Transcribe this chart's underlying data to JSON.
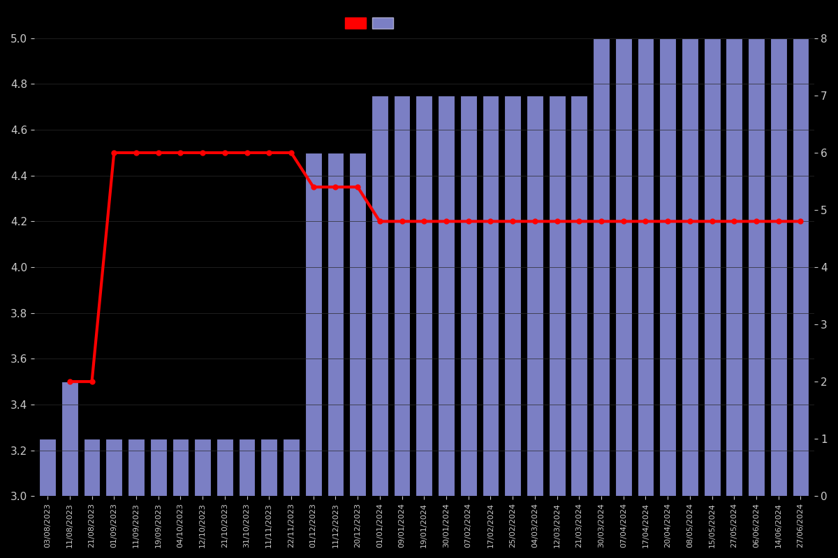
{
  "dates": [
    "03/08/2023",
    "11/08/2023",
    "21/08/2023",
    "01/09/2023",
    "11/09/2023",
    "19/09/2023",
    "04/10/2023",
    "12/10/2023",
    "21/10/2023",
    "31/10/2023",
    "11/11/2023",
    "22/11/2023",
    "01/12/2023",
    "11/12/2023",
    "20/12/2023",
    "01/01/2024",
    "09/01/2024",
    "19/01/2024",
    "30/01/2024",
    "07/02/2024",
    "17/02/2024",
    "25/02/2024",
    "04/03/2024",
    "12/03/2024",
    "21/03/2024",
    "30/03/2024",
    "07/04/2024",
    "17/04/2024",
    "20/04/2024",
    "08/05/2024",
    "15/05/2024",
    "27/05/2024",
    "06/06/2024",
    "14/06/2024",
    "27/06/2024"
  ],
  "bar_values": [
    1,
    2,
    1,
    1,
    1,
    1,
    1,
    1,
    1,
    1,
    1,
    1,
    6,
    6,
    6,
    7,
    7,
    7,
    7,
    7,
    7,
    7,
    7,
    7,
    7,
    8,
    8,
    8,
    8,
    8,
    8,
    8,
    8,
    8,
    8
  ],
  "line_values": [
    null,
    3.5,
    3.5,
    4.5,
    4.5,
    4.5,
    4.5,
    4.5,
    4.5,
    4.5,
    4.5,
    4.5,
    4.35,
    4.35,
    4.35,
    4.2,
    4.2,
    4.2,
    4.2,
    4.2,
    4.2,
    4.2,
    4.2,
    4.2,
    4.2,
    4.2,
    4.2,
    4.2,
    4.2,
    4.2,
    4.2,
    4.2,
    4.2,
    4.2,
    4.2
  ],
  "bar_color": "#7b7fc4",
  "bar_edge_color": "#000000",
  "line_color": "#ff0000",
  "background_color": "#000000",
  "text_color": "#cccccc",
  "ylim_left": [
    3.0,
    5.0
  ],
  "ylim_right": [
    0,
    8
  ],
  "yticks_left": [
    3.0,
    3.2,
    3.4,
    3.6,
    3.8,
    4.0,
    4.2,
    4.4,
    4.6,
    4.8,
    5.0
  ],
  "yticks_right": [
    0,
    1,
    2,
    3,
    4,
    5,
    6,
    7,
    8
  ],
  "line_width": 3,
  "marker": "o",
  "marker_size": 5,
  "figsize": [
    12,
    8
  ],
  "dpi": 100
}
